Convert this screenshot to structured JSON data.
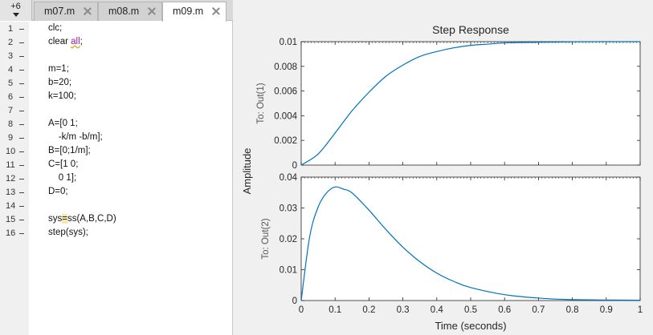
{
  "editor": {
    "overflow_count": "+6",
    "tabs": [
      {
        "label": "m07.m",
        "active": false
      },
      {
        "label": "m08.m",
        "active": false
      },
      {
        "label": "m09.m",
        "active": true
      }
    ],
    "lines": [
      {
        "num": "1",
        "parts": [
          {
            "t": "clc;"
          }
        ]
      },
      {
        "num": "2",
        "parts": [
          {
            "t": "clear "
          },
          {
            "t": "all",
            "c": "kw"
          },
          {
            "t": ";"
          }
        ]
      },
      {
        "num": "3",
        "parts": []
      },
      {
        "num": "4",
        "parts": [
          {
            "t": "m=1;"
          }
        ]
      },
      {
        "num": "5",
        "parts": [
          {
            "t": "b=20;"
          }
        ]
      },
      {
        "num": "6",
        "parts": [
          {
            "t": "k=100;"
          }
        ]
      },
      {
        "num": "7",
        "parts": []
      },
      {
        "num": "8",
        "parts": [
          {
            "t": "A=[0 1;"
          }
        ]
      },
      {
        "num": "9",
        "parts": [
          {
            "t": "    -k/m -b/m];"
          }
        ]
      },
      {
        "num": "10",
        "parts": [
          {
            "t": "B=[0;1/m];"
          }
        ]
      },
      {
        "num": "11",
        "parts": [
          {
            "t": "C=[1 0;"
          }
        ]
      },
      {
        "num": "12",
        "parts": [
          {
            "t": "    0 1];"
          }
        ]
      },
      {
        "num": "13",
        "parts": [
          {
            "t": "D=0;"
          }
        ]
      },
      {
        "num": "14",
        "parts": []
      },
      {
        "num": "15",
        "parts": [
          {
            "t": "sys"
          },
          {
            "t": "=",
            "c": "hl"
          },
          {
            "t": "ss(A,B,C,D)"
          }
        ]
      },
      {
        "num": "16",
        "parts": [
          {
            "t": "step(sys);"
          }
        ]
      }
    ]
  },
  "figure": {
    "colors": {
      "line": "#0072bd",
      "axes_bg": "#ffffff",
      "figure_bg": "#f0f0f0",
      "axis": "#262626"
    }
  },
  "chart_data": {
    "type": "line",
    "title": "Step Response",
    "xlabel": "Time (seconds)",
    "ylabel": "Amplitude",
    "xlim": [
      0,
      1
    ],
    "x_ticks": [
      "0",
      "0.1",
      "0.2",
      "0.3",
      "0.4",
      "0.5",
      "0.6",
      "0.7",
      "0.8",
      "0.9",
      "1"
    ],
    "x_tick_values": [
      0,
      0.1,
      0.2,
      0.3,
      0.4,
      0.5,
      0.6,
      0.7,
      0.8,
      0.9,
      1
    ],
    "subplots": [
      {
        "ylabel": "To: Out(1)",
        "ylim": [
          0,
          0.01
        ],
        "y_ticks": [
          "0",
          "0.002",
          "0.004",
          "0.006",
          "0.008",
          "0.01"
        ],
        "y_tick_values": [
          0,
          0.002,
          0.004,
          0.006,
          0.008,
          0.01
        ],
        "x": [
          0,
          0.05,
          0.1,
          0.15,
          0.2,
          0.25,
          0.3,
          0.35,
          0.4,
          0.45,
          0.5,
          0.55,
          0.6,
          0.7,
          0.8,
          0.9,
          1.0
        ],
        "values": [
          0,
          0.0009,
          0.0026,
          0.0044,
          0.0059,
          0.0072,
          0.0081,
          0.0088,
          0.0092,
          0.0095,
          0.0097,
          0.0098,
          0.0099,
          0.00995,
          0.00999,
          0.01,
          0.01
        ]
      },
      {
        "ylabel": "To: Out(2)",
        "ylim": [
          0,
          0.04
        ],
        "y_ticks": [
          "0",
          "0.01",
          "0.02",
          "0.03",
          "0.04"
        ],
        "y_tick_values": [
          0,
          0.01,
          0.02,
          0.03,
          0.04
        ],
        "x": [
          0,
          0.025,
          0.05,
          0.075,
          0.1,
          0.125,
          0.15,
          0.2,
          0.25,
          0.3,
          0.35,
          0.4,
          0.45,
          0.5,
          0.6,
          0.7,
          0.8,
          1.0
        ],
        "values": [
          0,
          0.0207,
          0.0303,
          0.0349,
          0.0368,
          0.0361,
          0.0349,
          0.0293,
          0.023,
          0.0173,
          0.0126,
          0.0089,
          0.0062,
          0.0042,
          0.0019,
          0.0008,
          0.0003,
          0.0001
        ]
      }
    ]
  }
}
